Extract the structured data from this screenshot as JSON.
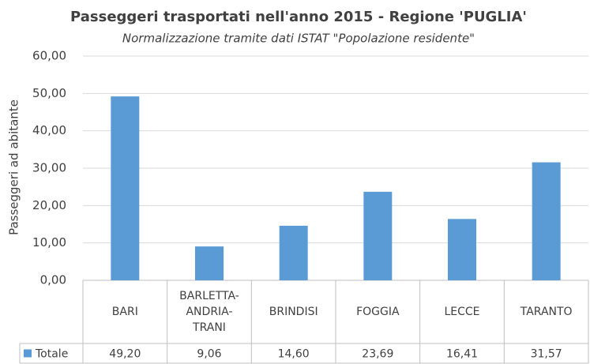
{
  "chart_data": {
    "type": "bar",
    "title": "Passeggeri trasportati nell'anno 2015 - Regione 'PUGLIA'",
    "subtitle": "Normalizzazione tramite dati ISTAT \"Popolazione residente\"",
    "y_label": "Passeggeri ad abitante",
    "categories": [
      "BARI",
      "BARLETTA-ANDRIA-TRANI",
      "BRINDISI",
      "FOGGIA",
      "LECCE",
      "TARANTO"
    ],
    "series": [
      {
        "name": "Totale",
        "color": "#5b9bd5",
        "values": [
          49.2,
          9.06,
          14.6,
          23.69,
          16.41,
          31.57
        ],
        "value_labels": [
          "49,20",
          "9,06",
          "14,60",
          "23,69",
          "16,41",
          "31,57"
        ]
      }
    ],
    "ylim": [
      0,
      60
    ],
    "yticks": [
      {
        "value": 0,
        "label": "0,00"
      },
      {
        "value": 10,
        "label": "10,00"
      },
      {
        "value": 20,
        "label": "20,00"
      },
      {
        "value": 30,
        "label": "30,00"
      },
      {
        "value": 40,
        "label": "40,00"
      },
      {
        "value": 50,
        "label": "50,00"
      },
      {
        "value": 60,
        "label": "60,00"
      }
    ],
    "grid": true
  }
}
